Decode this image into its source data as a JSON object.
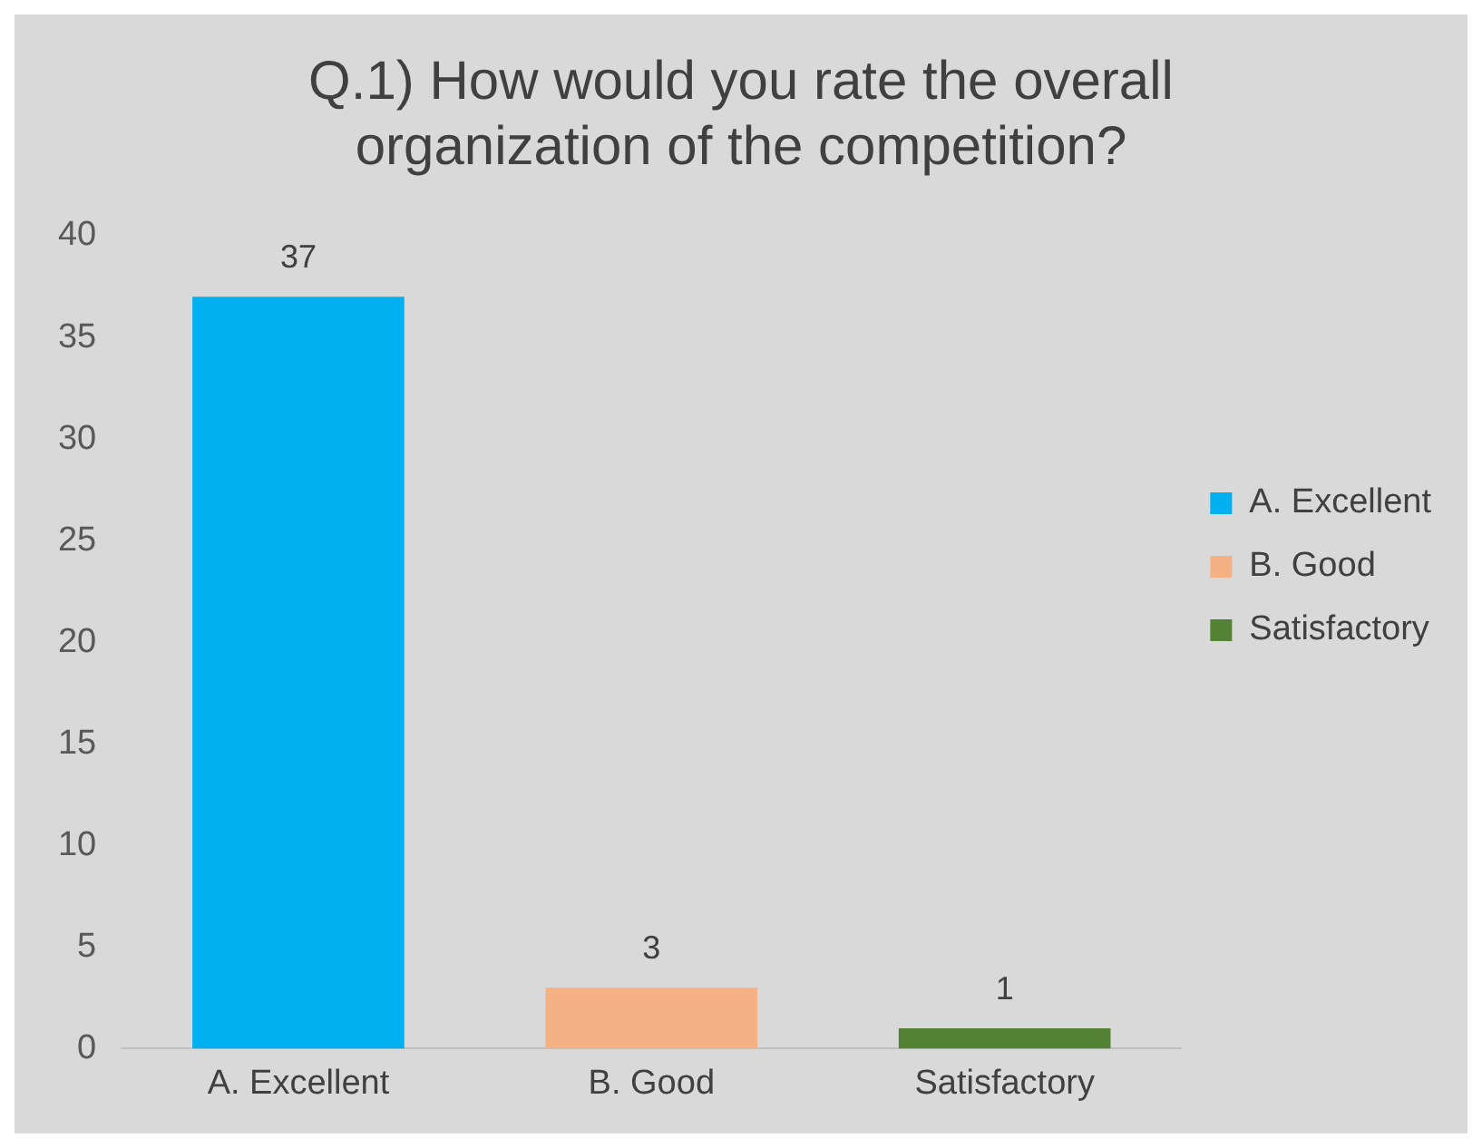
{
  "chart_data": {
    "type": "bar",
    "title": [
      "Q.1) How would you rate the overall",
      "organization of the competition?"
    ],
    "categories": [
      "A. Excellent",
      "B. Good",
      "Satisfactory"
    ],
    "series": [
      {
        "name": "A. Excellent",
        "color": "#00b0f0",
        "values": [
          37,
          null,
          null
        ]
      },
      {
        "name": "B. Good",
        "color": "#f4b183",
        "values": [
          null,
          3,
          null
        ]
      },
      {
        "name": "Satisfactory",
        "color": "#548235",
        "values": [
          null,
          null,
          1
        ]
      }
    ],
    "ylim": [
      0,
      40
    ],
    "yticks": [
      0,
      5,
      10,
      15,
      20,
      25,
      30,
      35,
      40
    ],
    "grid": false,
    "legend": "right",
    "data_labels": true
  }
}
